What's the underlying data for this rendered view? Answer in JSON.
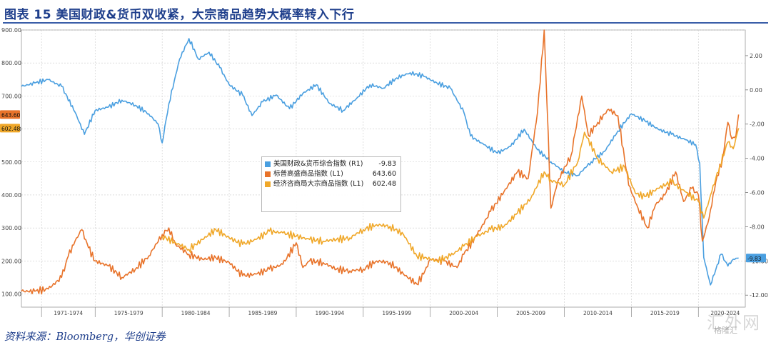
{
  "header": {
    "figure_title": "图表 15 美国财政&货币双收紧，大宗商品趋势大概率转入下行"
  },
  "source_note": "资料来源：Bloomberg，华创证券",
  "watermark": {
    "main": "汇外网",
    "sub": "格隆汇"
  },
  "colors": {
    "title": "#1f3f8c",
    "blue_series": "#4a9fe0",
    "orange_series": "#e8732a",
    "yellow_series": "#f0a82a",
    "grid": "#c9c9c9"
  },
  "chart_data": {
    "type": "line",
    "title": "",
    "xlabel": "",
    "ylabel_left": "",
    "ylabel_right": "",
    "x_range": [
      1969.5,
      2023.5
    ],
    "y_left_range": [
      60,
      900
    ],
    "y_right_range": [
      -12.7,
      3.5
    ],
    "y_left_ticks": [
      100,
      200,
      300,
      400,
      500,
      600,
      700,
      800,
      900
    ],
    "y_left_tick_labels": [
      "100.00",
      "200.00",
      "300.00",
      "400.00",
      "500.00",
      "600.00",
      "700.00",
      "800.00",
      "900.00"
    ],
    "y_right_ticks": [
      2,
      0,
      -2,
      -4,
      -6,
      -8,
      -10,
      -12
    ],
    "y_right_tick_labels": [
      "2.00",
      "0.00",
      "-2.00",
      "-4.00",
      "-6.00",
      "-8.00",
      "-10.00",
      "-12.00"
    ],
    "x_categories": [
      {
        "label": "1971-1974",
        "start": 1971,
        "end": 1975
      },
      {
        "label": "1975-1979",
        "start": 1975,
        "end": 1980
      },
      {
        "label": "1980-1984",
        "start": 1980,
        "end": 1985
      },
      {
        "label": "1985-1989",
        "start": 1985,
        "end": 1990
      },
      {
        "label": "1990-1994",
        "start": 1990,
        "end": 1995
      },
      {
        "label": "1995-1999",
        "start": 1995,
        "end": 2000
      },
      {
        "label": "2000-2004",
        "start": 2000,
        "end": 2005
      },
      {
        "label": "2005-2009",
        "start": 2005,
        "end": 2010
      },
      {
        "label": "2010-2014",
        "start": 2010,
        "end": 2015
      },
      {
        "label": "2015-2019",
        "start": 2015,
        "end": 2020
      },
      {
        "label": "2020-2024",
        "start": 2020,
        "end": 2024
      }
    ],
    "grid": true,
    "legend_position": "center",
    "end_value_tags": [
      {
        "series": 0,
        "axis": "right",
        "label": "-9.83"
      },
      {
        "series": 1,
        "axis": "left",
        "label": "643.60"
      },
      {
        "series": 2,
        "axis": "left",
        "label": "602.48"
      }
    ],
    "series": [
      {
        "name": "美国财政&货币综合指数 (R1)",
        "last_value": "-9.83",
        "axis": "right",
        "color": "#4a9fe0",
        "points": [
          [
            1969.5,
            0.2
          ],
          [
            1970.5,
            0.4
          ],
          [
            1971.5,
            0.6
          ],
          [
            1972.5,
            0.2
          ],
          [
            1973.5,
            -1.3
          ],
          [
            1974.2,
            -2.6
          ],
          [
            1975.0,
            -1.2
          ],
          [
            1976.0,
            -1.0
          ],
          [
            1977.0,
            -0.6
          ],
          [
            1978.0,
            -0.9
          ],
          [
            1979.0,
            -1.4
          ],
          [
            1979.7,
            -2.0
          ],
          [
            1980.0,
            -3.1
          ],
          [
            1980.5,
            -0.8
          ],
          [
            1981.3,
            1.8
          ],
          [
            1982.0,
            3.0
          ],
          [
            1982.7,
            1.8
          ],
          [
            1983.5,
            2.2
          ],
          [
            1984.3,
            1.3
          ],
          [
            1985.0,
            0.3
          ],
          [
            1986.0,
            -0.3
          ],
          [
            1986.7,
            -1.5
          ],
          [
            1987.5,
            -0.7
          ],
          [
            1988.5,
            -0.3
          ],
          [
            1989.5,
            -1.1
          ],
          [
            1990.5,
            -0.2
          ],
          [
            1991.5,
            0.3
          ],
          [
            1992.5,
            -0.8
          ],
          [
            1993.5,
            -1.2
          ],
          [
            1994.5,
            -0.5
          ],
          [
            1995.5,
            0.3
          ],
          [
            1996.5,
            0.1
          ],
          [
            1997.5,
            0.7
          ],
          [
            1998.5,
            1.0
          ],
          [
            1999.5,
            0.8
          ],
          [
            2000.5,
            0.4
          ],
          [
            2001.5,
            0.1
          ],
          [
            2002.5,
            -1.3
          ],
          [
            2003.0,
            -2.7
          ],
          [
            2004.0,
            -3.2
          ],
          [
            2005.0,
            -3.7
          ],
          [
            2006.0,
            -3.3
          ],
          [
            2007.0,
            -2.3
          ],
          [
            2008.0,
            -3.5
          ],
          [
            2009.0,
            -4.2
          ],
          [
            2010.0,
            -4.8
          ],
          [
            2011.0,
            -5.0
          ],
          [
            2012.0,
            -4.2
          ],
          [
            2013.0,
            -3.6
          ],
          [
            2014.0,
            -2.4
          ],
          [
            2015.0,
            -1.4
          ],
          [
            2016.0,
            -1.8
          ],
          [
            2017.0,
            -2.3
          ],
          [
            2018.0,
            -2.6
          ],
          [
            2019.0,
            -2.9
          ],
          [
            2019.8,
            -3.2
          ],
          [
            2020.1,
            -4.3
          ],
          [
            2020.4,
            -9.8
          ],
          [
            2020.9,
            -11.4
          ],
          [
            2021.3,
            -10.5
          ],
          [
            2021.7,
            -9.6
          ],
          [
            2022.2,
            -10.3
          ],
          [
            2022.6,
            -9.9
          ],
          [
            2023.0,
            -9.83
          ]
        ]
      },
      {
        "name": "标普高盛商品指数 (L1)",
        "last_value": "643.60",
        "axis": "left",
        "color": "#e8732a",
        "points": [
          [
            1969.5,
            108
          ],
          [
            1970.5,
            108
          ],
          [
            1971.5,
            115
          ],
          [
            1972.5,
            150
          ],
          [
            1973.0,
            215
          ],
          [
            1973.5,
            260
          ],
          [
            1974.0,
            295
          ],
          [
            1974.5,
            240
          ],
          [
            1975.0,
            200
          ],
          [
            1976.0,
            185
          ],
          [
            1977.0,
            150
          ],
          [
            1978.0,
            175
          ],
          [
            1979.0,
            215
          ],
          [
            1980.0,
            280
          ],
          [
            1980.5,
            300
          ],
          [
            1981.0,
            250
          ],
          [
            1982.0,
            220
          ],
          [
            1983.0,
            205
          ],
          [
            1984.0,
            210
          ],
          [
            1985.0,
            195
          ],
          [
            1986.0,
            155
          ],
          [
            1987.0,
            160
          ],
          [
            1988.0,
            175
          ],
          [
            1989.0,
            190
          ],
          [
            1990.0,
            255
          ],
          [
            1990.5,
            180
          ],
          [
            1991.0,
            200
          ],
          [
            1992.0,
            195
          ],
          [
            1993.0,
            175
          ],
          [
            1994.0,
            170
          ],
          [
            1995.0,
            175
          ],
          [
            1996.0,
            200
          ],
          [
            1997.0,
            195
          ],
          [
            1998.0,
            160
          ],
          [
            1999.0,
            130
          ],
          [
            1999.5,
            160
          ],
          [
            2000.0,
            205
          ],
          [
            2001.0,
            200
          ],
          [
            2002.0,
            180
          ],
          [
            2002.5,
            220
          ],
          [
            2003.5,
            280
          ],
          [
            2004.5,
            350
          ],
          [
            2005.5,
            410
          ],
          [
            2006.5,
            470
          ],
          [
            2007.3,
            450
          ],
          [
            2008.0,
            650
          ],
          [
            2008.5,
            900
          ],
          [
            2009.0,
            360
          ],
          [
            2009.5,
            440
          ],
          [
            2010.5,
            520
          ],
          [
            2011.3,
            700
          ],
          [
            2011.8,
            580
          ],
          [
            2012.5,
            620
          ],
          [
            2013.3,
            660
          ],
          [
            2014.0,
            640
          ],
          [
            2014.8,
            430
          ],
          [
            2015.5,
            360
          ],
          [
            2016.2,
            300
          ],
          [
            2016.8,
            370
          ],
          [
            2017.5,
            400
          ],
          [
            2018.3,
            470
          ],
          [
            2018.9,
            380
          ],
          [
            2019.5,
            420
          ],
          [
            2020.0,
            400
          ],
          [
            2020.3,
            260
          ],
          [
            2020.8,
            330
          ],
          [
            2021.3,
            440
          ],
          [
            2021.8,
            510
          ],
          [
            2022.2,
            620
          ],
          [
            2022.5,
            570
          ],
          [
            2022.8,
            580
          ],
          [
            2023.0,
            643.6
          ]
        ]
      },
      {
        "name": "经济咨商局大宗商品指数 (L1)",
        "last_value": "602.48",
        "axis": "left",
        "color": "#f0a82a",
        "points": [
          [
            1980.0,
            275
          ],
          [
            1981.0,
            255
          ],
          [
            1982.0,
            235
          ],
          [
            1983.0,
            265
          ],
          [
            1984.0,
            295
          ],
          [
            1985.0,
            270
          ],
          [
            1986.0,
            250
          ],
          [
            1987.0,
            265
          ],
          [
            1988.0,
            290
          ],
          [
            1989.0,
            285
          ],
          [
            1990.0,
            275
          ],
          [
            1991.0,
            265
          ],
          [
            1992.0,
            260
          ],
          [
            1993.0,
            265
          ],
          [
            1994.0,
            270
          ],
          [
            1995.0,
            295
          ],
          [
            1996.0,
            310
          ],
          [
            1997.0,
            305
          ],
          [
            1998.0,
            280
          ],
          [
            1999.0,
            215
          ],
          [
            1999.7,
            210
          ],
          [
            2000.5,
            200
          ],
          [
            2001.5,
            215
          ],
          [
            2002.5,
            245
          ],
          [
            2003.5,
            275
          ],
          [
            2004.5,
            295
          ],
          [
            2005.5,
            305
          ],
          [
            2006.5,
            345
          ],
          [
            2007.5,
            390
          ],
          [
            2008.5,
            470
          ],
          [
            2009.0,
            445
          ],
          [
            2010.0,
            430
          ],
          [
            2011.0,
            500
          ],
          [
            2011.5,
            590
          ],
          [
            2012.5,
            510
          ],
          [
            2013.5,
            470
          ],
          [
            2014.5,
            485
          ],
          [
            2015.3,
            405
          ],
          [
            2016.0,
            395
          ],
          [
            2017.0,
            420
          ],
          [
            2018.0,
            440
          ],
          [
            2019.0,
            410
          ],
          [
            2020.0,
            380
          ],
          [
            2020.4,
            330
          ],
          [
            2021.0,
            410
          ],
          [
            2021.6,
            490
          ],
          [
            2022.2,
            560
          ],
          [
            2022.6,
            540
          ],
          [
            2023.0,
            602.48
          ]
        ]
      }
    ]
  }
}
